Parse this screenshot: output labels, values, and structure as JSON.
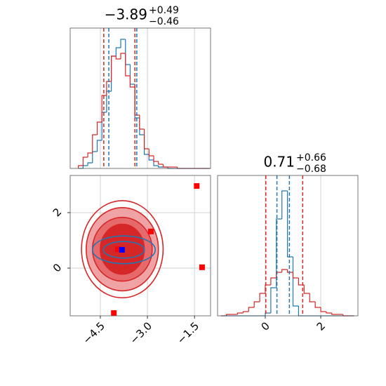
{
  "chart_data": {
    "type": "corner",
    "params": [
      {
        "title": {
          "value": "−3.89",
          "plus": "+0.49",
          "minus": "−0.46"
        },
        "lim": [
          -5.46,
          -0.99
        ],
        "ticks": [
          {
            "value": -4.5,
            "label": "−4.5"
          },
          {
            "value": -3.0,
            "label": "−3.0"
          },
          {
            "value": -1.5,
            "label": "−1.5"
          }
        ],
        "quantiles": [
          {
            "color": "#d62728",
            "values": [
              -4.39,
              -3.4
            ]
          },
          {
            "color": "#1f77b4",
            "values": [
              -4.23,
              -3.34
            ]
          }
        ],
        "hist": {
          "ylim": [
            0,
            100
          ],
          "bins": [
            -5.2,
            -5.05,
            -4.9,
            -4.75,
            -4.6,
            -4.45,
            -4.3,
            -4.15,
            -4.0,
            -3.85,
            -3.7,
            -3.55,
            -3.4,
            -3.25,
            -3.1,
            -2.95,
            -2.8,
            -2.65,
            -2.5,
            -2.35,
            -2.2,
            -2.05,
            -1.9,
            -1.75,
            -1.6,
            -1.45,
            -1.3,
            -1.15,
            -1.0
          ],
          "series": [
            {
              "color": "#1f77b4",
              "values": [
                0,
                2,
                4,
                12,
                20,
                40,
                55,
                80,
                86,
                92,
                74,
                60,
                36,
                24,
                10,
                6,
                2,
                1,
                1,
                0,
                0,
                0,
                0,
                0,
                0,
                0,
                0,
                0
              ]
            },
            {
              "color": "#d62728",
              "values": [
                2,
                8,
                11,
                24,
                33,
                52,
                62,
                80,
                78,
                82,
                66,
                58,
                38,
                28,
                14,
                9,
                5,
                3,
                1,
                1,
                1,
                0,
                0,
                0,
                0,
                0,
                0,
                0
              ]
            }
          ]
        }
      },
      {
        "title": {
          "value": "0.71",
          "plus": "+0.66",
          "minus": "−0.68"
        },
        "lim": [
          -1.72,
          3.34
        ],
        "ticks": [
          0,
          2
        ],
        "quantiles": [
          {
            "color": "#d62728",
            "values": [
              0.02,
              1.35
            ]
          },
          {
            "color": "#1f77b4",
            "values": [
              0.42,
              0.87
            ]
          }
        ],
        "hist": {
          "ylim": [
            0,
            100
          ],
          "bins": [
            -1.6,
            -1.4,
            -1.2,
            -1.0,
            -0.8,
            -0.6,
            -0.4,
            -0.2,
            0,
            0.2,
            0.4,
            0.6,
            0.8,
            1.0,
            1.2,
            1.4,
            1.6,
            1.8,
            2.0,
            2.2,
            2.4,
            2.6,
            2.8,
            3.0,
            3.2
          ],
          "series": [
            {
              "color": "#1f77b4",
              "values": [
                0,
                0,
                0,
                0,
                0,
                0,
                0,
                0,
                2,
                20,
                69,
                89,
                42,
                7,
                0,
                0,
                0,
                0,
                0,
                0,
                0,
                0,
                0,
                0
              ]
            },
            {
              "color": "#d62728",
              "values": [
                0,
                1,
                1,
                2,
                3,
                6,
                10,
                16,
                22,
                27,
                31,
                33,
                31,
                27,
                22,
                16,
                10,
                6,
                3,
                2,
                1,
                1,
                0,
                0
              ]
            }
          ]
        }
      }
    ],
    "ellipses": [
      {
        "x": -3.8,
        "y": 0.68,
        "rx": 1.3,
        "ry": 1.75,
        "stroke": "#d62728",
        "fill": "none"
      },
      {
        "x": -3.8,
        "y": 0.68,
        "rx": 1.15,
        "ry": 1.5,
        "stroke": "#d62728",
        "fill": "#f0a3a4"
      },
      {
        "x": -3.8,
        "y": 0.68,
        "rx": 0.95,
        "ry": 1.15,
        "stroke": "#d62728",
        "fill": "#e66a6b"
      },
      {
        "x": -3.8,
        "y": 0.68,
        "rx": 0.7,
        "ry": 0.9,
        "stroke": "#d62728",
        "fill": "#d62728"
      },
      {
        "x": -3.75,
        "y": 0.66,
        "rx": 1.0,
        "ry": 0.5,
        "stroke": "#1f77b4",
        "fill": "none"
      },
      {
        "x": -3.75,
        "y": 0.66,
        "rx": 0.65,
        "ry": 0.3,
        "stroke": "#1f77b4",
        "fill": "none"
      }
    ],
    "points": [
      {
        "color": "#ff0000",
        "x": [
          -1.43,
          -2.89,
          -1.26,
          -4.07,
          -3.94
        ],
        "y": [
          2.96,
          1.32,
          0.03,
          -1.62,
          0.68
        ]
      },
      {
        "color": "#0000ff",
        "x": [
          -3.81
        ],
        "y": [
          0.66
        ]
      }
    ]
  }
}
